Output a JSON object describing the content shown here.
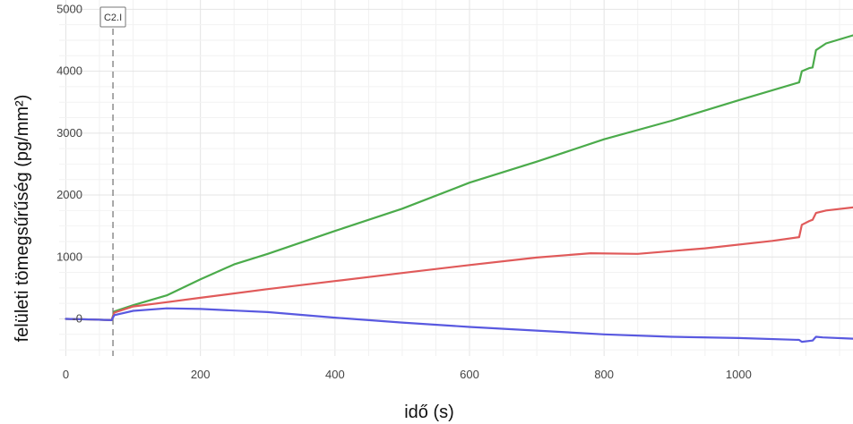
{
  "chart_data": {
    "type": "line",
    "title": "",
    "xlabel": "idő (s)",
    "ylabel": "felületi tömegsűrűség (pg/mm²)",
    "xlim": [
      -10,
      1170
    ],
    "ylim": [
      -600,
      5150
    ],
    "xticks": [
      0,
      200,
      400,
      600,
      800,
      1000
    ],
    "yticks": [
      0,
      1000,
      2000,
      3000,
      4000,
      5000
    ],
    "ytick_labels": [
      "-0",
      "1000",
      "2000",
      "3000",
      "4000",
      "5000"
    ],
    "grid": true,
    "legend": "none",
    "annotation": {
      "label": "C2.I",
      "x": 70
    },
    "series": [
      {
        "color": "#4bab4b",
        "x": [
          0,
          40,
          68,
          72,
          100,
          150,
          200,
          250,
          300,
          400,
          500,
          600,
          700,
          800,
          900,
          1000,
          1090,
          1094,
          1105,
          1110,
          1115,
          1130,
          1170
        ],
        "y": [
          0,
          -10,
          -20,
          120,
          220,
          380,
          640,
          880,
          1050,
          1420,
          1780,
          2200,
          2540,
          2900,
          3200,
          3530,
          3820,
          4000,
          4050,
          4060,
          4340,
          4450,
          4580
        ]
      },
      {
        "color": "#e05a5a",
        "x": [
          0,
          40,
          68,
          72,
          100,
          150,
          200,
          300,
          400,
          500,
          600,
          700,
          780,
          850,
          950,
          1050,
          1090,
          1094,
          1105,
          1110,
          1115,
          1130,
          1170
        ],
        "y": [
          0,
          -10,
          -20,
          100,
          200,
          270,
          340,
          480,
          610,
          740,
          870,
          990,
          1060,
          1050,
          1140,
          1260,
          1320,
          1520,
          1580,
          1600,
          1710,
          1750,
          1800
        ]
      },
      {
        "color": "#5959e0",
        "x": [
          0,
          40,
          68,
          72,
          100,
          150,
          200,
          300,
          400,
          500,
          600,
          700,
          800,
          900,
          1000,
          1090,
          1094,
          1110,
          1115,
          1125,
          1170
        ],
        "y": [
          0,
          -10,
          -20,
          60,
          130,
          170,
          160,
          110,
          20,
          -60,
          -130,
          -190,
          -250,
          -290,
          -310,
          -340,
          -370,
          -350,
          -290,
          -300,
          -320
        ]
      }
    ]
  }
}
